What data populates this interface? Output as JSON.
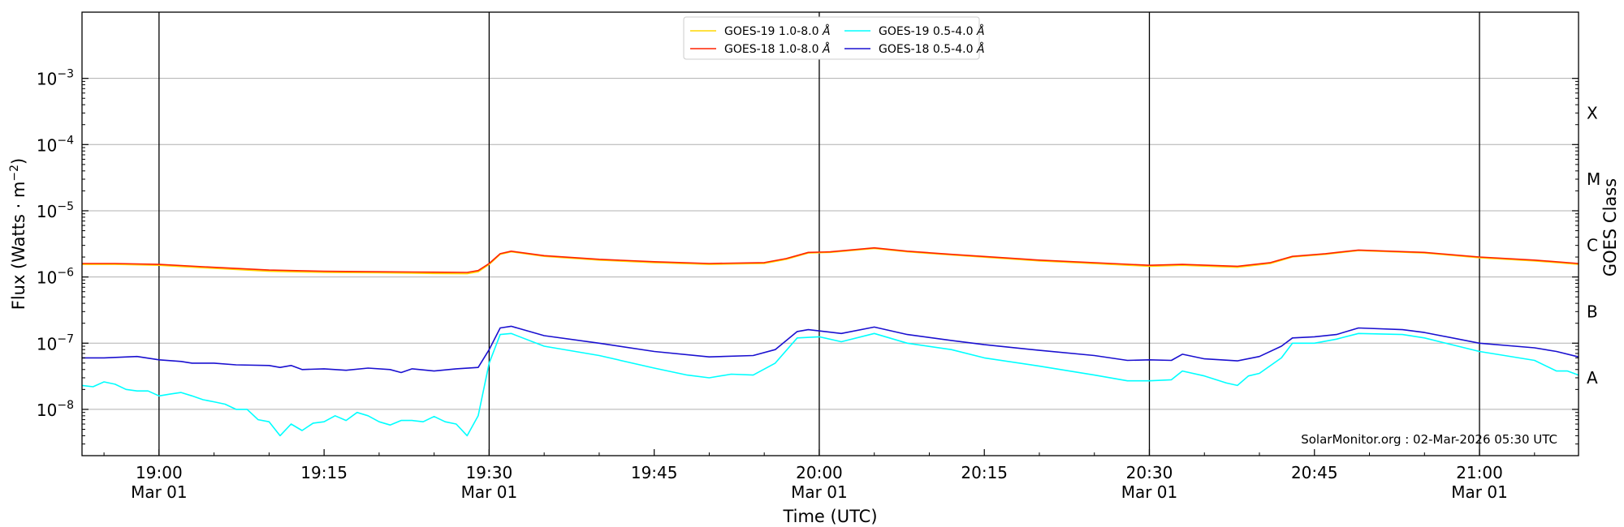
{
  "chart_data": {
    "type": "line",
    "xlabel": "Time (UTC)",
    "ylabel_prefix": "Flux (Watts · m",
    "ylabel_exp": "−2",
    "ylabel_suffix": ")",
    "right_label": "GOES Class",
    "credit": "SolarMonitor.org : 02-Mar-2026 05:30 UTC",
    "yscale": "log",
    "xlim": [
      "18:53",
      "21:09"
    ],
    "ylim": [
      2e-09,
      0.01
    ],
    "x_ticks": [
      {
        "time": "19:00",
        "label": "19:00",
        "sublabel": "Mar 01",
        "vline": true
      },
      {
        "time": "19:15",
        "label": "19:15",
        "sublabel": "",
        "vline": false
      },
      {
        "time": "19:30",
        "label": "19:30",
        "sublabel": "Mar 01",
        "vline": true
      },
      {
        "time": "19:45",
        "label": "19:45",
        "sublabel": "",
        "vline": false
      },
      {
        "time": "20:00",
        "label": "20:00",
        "sublabel": "Mar 01",
        "vline": true
      },
      {
        "time": "20:15",
        "label": "20:15",
        "sublabel": "",
        "vline": false
      },
      {
        "time": "20:30",
        "label": "20:30",
        "sublabel": "Mar 01",
        "vline": true
      },
      {
        "time": "20:45",
        "label": "20:45",
        "sublabel": "",
        "vline": false
      },
      {
        "time": "21:00",
        "label": "21:00",
        "sublabel": "Mar 01",
        "vline": true
      }
    ],
    "y_ticks": [
      {
        "value": 1e-08,
        "base": "10",
        "exp": "−8"
      },
      {
        "value": 1e-07,
        "base": "10",
        "exp": "−7"
      },
      {
        "value": 1e-06,
        "base": "10",
        "exp": "−6"
      },
      {
        "value": 1e-05,
        "base": "10",
        "exp": "−5"
      },
      {
        "value": 0.0001,
        "base": "10",
        "exp": "−4"
      },
      {
        "value": 0.001,
        "base": "10",
        "exp": "−3"
      }
    ],
    "goes_classes": [
      {
        "label": "A",
        "value": 3e-08
      },
      {
        "label": "B",
        "value": 3e-07
      },
      {
        "label": "C",
        "value": 3e-06
      },
      {
        "label": "M",
        "value": 3e-05
      },
      {
        "label": "X",
        "value": 0.0003
      }
    ],
    "grid": "horizontal",
    "legend_position": "top-center",
    "legend": [
      {
        "name": "GOES-19 1.0-8.0",
        "unit": "Å",
        "color": "#ffd700"
      },
      {
        "name": "GOES-18 1.0-8.0",
        "unit": "Å",
        "color": "#ff2200"
      },
      {
        "name": "GOES-19 0.5-4.0",
        "unit": "Å",
        "color": "#00ffff"
      },
      {
        "name": "GOES-18 0.5-4.0",
        "unit": "Å",
        "color": "#1a10d0"
      }
    ],
    "series": [
      {
        "name": "GOES-19 1.0-8.0Å",
        "color": "#ffd700",
        "points": [
          [
            "18:53",
            1.55e-06
          ],
          [
            "18:56",
            1.55e-06
          ],
          [
            "19:00",
            1.5e-06
          ],
          [
            "19:05",
            1.35e-06
          ],
          [
            "19:10",
            1.22e-06
          ],
          [
            "19:15",
            1.17e-06
          ],
          [
            "19:20",
            1.16e-06
          ],
          [
            "19:25",
            1.13e-06
          ],
          [
            "19:28",
            1.12e-06
          ],
          [
            "19:29",
            1.2e-06
          ],
          [
            "19:30",
            1.55e-06
          ],
          [
            "19:31",
            2.2e-06
          ],
          [
            "19:32",
            2.4e-06
          ],
          [
            "19:35",
            2.05e-06
          ],
          [
            "19:40",
            1.8e-06
          ],
          [
            "19:45",
            1.65e-06
          ],
          [
            "19:50",
            1.55e-06
          ],
          [
            "19:55",
            1.6e-06
          ],
          [
            "19:57",
            1.85e-06
          ],
          [
            "19:59",
            2.3e-06
          ],
          [
            "20:01",
            2.35e-06
          ],
          [
            "20:05",
            2.7e-06
          ],
          [
            "20:08",
            2.4e-06
          ],
          [
            "20:12",
            2.15e-06
          ],
          [
            "20:20",
            1.75e-06
          ],
          [
            "20:30",
            1.45e-06
          ],
          [
            "20:33",
            1.5e-06
          ],
          [
            "20:38",
            1.4e-06
          ],
          [
            "20:41",
            1.6e-06
          ],
          [
            "20:43",
            2e-06
          ],
          [
            "20:46",
            2.2e-06
          ],
          [
            "20:49",
            2.5e-06
          ],
          [
            "20:55",
            2.3e-06
          ],
          [
            "21:00",
            1.95e-06
          ],
          [
            "21:05",
            1.75e-06
          ],
          [
            "21:09",
            1.55e-06
          ]
        ]
      },
      {
        "name": "GOES-18 1.0-8.0Å",
        "color": "#ff2200",
        "points": [
          [
            "18:53",
            1.6e-06
          ],
          [
            "18:56",
            1.6e-06
          ],
          [
            "19:00",
            1.55e-06
          ],
          [
            "19:05",
            1.4e-06
          ],
          [
            "19:10",
            1.27e-06
          ],
          [
            "19:15",
            1.22e-06
          ],
          [
            "19:20",
            1.2e-06
          ],
          [
            "19:25",
            1.18e-06
          ],
          [
            "19:28",
            1.17e-06
          ],
          [
            "19:29",
            1.25e-06
          ],
          [
            "19:30",
            1.6e-06
          ],
          [
            "19:31",
            2.25e-06
          ],
          [
            "19:32",
            2.45e-06
          ],
          [
            "19:35",
            2.1e-06
          ],
          [
            "19:40",
            1.85e-06
          ],
          [
            "19:45",
            1.7e-06
          ],
          [
            "19:50",
            1.6e-06
          ],
          [
            "19:55",
            1.65e-06
          ],
          [
            "19:57",
            1.9e-06
          ],
          [
            "19:59",
            2.35e-06
          ],
          [
            "20:01",
            2.4e-06
          ],
          [
            "20:05",
            2.75e-06
          ],
          [
            "20:08",
            2.45e-06
          ],
          [
            "20:12",
            2.2e-06
          ],
          [
            "20:20",
            1.8e-06
          ],
          [
            "20:30",
            1.5e-06
          ],
          [
            "20:33",
            1.55e-06
          ],
          [
            "20:38",
            1.45e-06
          ],
          [
            "20:41",
            1.65e-06
          ],
          [
            "20:43",
            2.05e-06
          ],
          [
            "20:46",
            2.25e-06
          ],
          [
            "20:49",
            2.55e-06
          ],
          [
            "20:55",
            2.35e-06
          ],
          [
            "21:00",
            2e-06
          ],
          [
            "21:05",
            1.8e-06
          ],
          [
            "21:09",
            1.6e-06
          ]
        ]
      },
      {
        "name": "GOES-19 0.5-4.0Å",
        "color": "#00ffff",
        "points": [
          [
            "18:53",
            2.3e-08
          ],
          [
            "18:54",
            2.2e-08
          ],
          [
            "18:55",
            2.6e-08
          ],
          [
            "18:56",
            2.4e-08
          ],
          [
            "18:57",
            2e-08
          ],
          [
            "18:58",
            1.9e-08
          ],
          [
            "18:59",
            1.9e-08
          ],
          [
            "19:00",
            1.6e-08
          ],
          [
            "19:01",
            1.7e-08
          ],
          [
            "19:02",
            1.8e-08
          ],
          [
            "19:03",
            1.6e-08
          ],
          [
            "19:04",
            1.4e-08
          ],
          [
            "19:05",
            1.3e-08
          ],
          [
            "19:06",
            1.2e-08
          ],
          [
            "19:07",
            1e-08
          ],
          [
            "19:08",
            1e-08
          ],
          [
            "19:09",
            7e-09
          ],
          [
            "19:10",
            6.5e-09
          ],
          [
            "19:11",
            4e-09
          ],
          [
            "19:12",
            6e-09
          ],
          [
            "19:13",
            4.8e-09
          ],
          [
            "19:14",
            6.2e-09
          ],
          [
            "19:15",
            6.5e-09
          ],
          [
            "19:16",
            8e-09
          ],
          [
            "19:17",
            6.8e-09
          ],
          [
            "19:18",
            9e-09
          ],
          [
            "19:19",
            8e-09
          ],
          [
            "19:20",
            6.5e-09
          ],
          [
            "19:21",
            5.8e-09
          ],
          [
            "19:22",
            6.8e-09
          ],
          [
            "19:23",
            6.8e-09
          ],
          [
            "19:24",
            6.5e-09
          ],
          [
            "19:25",
            7.8e-09
          ],
          [
            "19:26",
            6.5e-09
          ],
          [
            "19:27",
            6e-09
          ],
          [
            "19:28",
            4e-09
          ],
          [
            "19:29",
            8e-09
          ],
          [
            "19:30",
            5e-08
          ],
          [
            "19:31",
            1.35e-07
          ],
          [
            "19:32",
            1.4e-07
          ],
          [
            "19:35",
            9e-08
          ],
          [
            "19:40",
            6.5e-08
          ],
          [
            "19:45",
            4.2e-08
          ],
          [
            "19:48",
            3.3e-08
          ],
          [
            "19:50",
            3e-08
          ],
          [
            "19:52",
            3.4e-08
          ],
          [
            "19:54",
            3.3e-08
          ],
          [
            "19:56",
            5e-08
          ],
          [
            "19:58",
            1.2e-07
          ],
          [
            "20:00",
            1.25e-07
          ],
          [
            "20:02",
            1.05e-07
          ],
          [
            "20:05",
            1.4e-07
          ],
          [
            "20:08",
            1e-07
          ],
          [
            "20:12",
            8e-08
          ],
          [
            "20:15",
            6e-08
          ],
          [
            "20:20",
            4.5e-08
          ],
          [
            "20:25",
            3.3e-08
          ],
          [
            "20:28",
            2.7e-08
          ],
          [
            "20:30",
            2.7e-08
          ],
          [
            "20:32",
            2.8e-08
          ],
          [
            "20:33",
            3.8e-08
          ],
          [
            "20:35",
            3.2e-08
          ],
          [
            "20:37",
            2.5e-08
          ],
          [
            "20:38",
            2.3e-08
          ],
          [
            "20:39",
            3.2e-08
          ],
          [
            "20:40",
            3.5e-08
          ],
          [
            "20:42",
            6e-08
          ],
          [
            "20:43",
            1e-07
          ],
          [
            "20:45",
            1e-07
          ],
          [
            "20:47",
            1.15e-07
          ],
          [
            "20:49",
            1.4e-07
          ],
          [
            "20:53",
            1.35e-07
          ],
          [
            "20:55",
            1.2e-07
          ],
          [
            "21:00",
            7.5e-08
          ],
          [
            "21:05",
            5.5e-08
          ],
          [
            "21:07",
            3.8e-08
          ],
          [
            "21:08",
            3.8e-08
          ],
          [
            "21:09",
            3.3e-08
          ]
        ]
      },
      {
        "name": "GOES-18 0.5-4.0Å",
        "color": "#1a10d0",
        "points": [
          [
            "18:53",
            6e-08
          ],
          [
            "18:55",
            6e-08
          ],
          [
            "18:58",
            6.3e-08
          ],
          [
            "19:00",
            5.6e-08
          ],
          [
            "19:02",
            5.3e-08
          ],
          [
            "19:03",
            5e-08
          ],
          [
            "19:05",
            5e-08
          ],
          [
            "19:07",
            4.7e-08
          ],
          [
            "19:10",
            4.6e-08
          ],
          [
            "19:11",
            4.3e-08
          ],
          [
            "19:12",
            4.6e-08
          ],
          [
            "19:13",
            4e-08
          ],
          [
            "19:15",
            4.1e-08
          ],
          [
            "19:17",
            3.9e-08
          ],
          [
            "19:19",
            4.2e-08
          ],
          [
            "19:21",
            4e-08
          ],
          [
            "19:22",
            3.6e-08
          ],
          [
            "19:23",
            4.1e-08
          ],
          [
            "19:25",
            3.8e-08
          ],
          [
            "19:27",
            4.1e-08
          ],
          [
            "19:29",
            4.3e-08
          ],
          [
            "19:30",
            8e-08
          ],
          [
            "19:31",
            1.7e-07
          ],
          [
            "19:32",
            1.8e-07
          ],
          [
            "19:35",
            1.3e-07
          ],
          [
            "19:40",
            1e-07
          ],
          [
            "19:45",
            7.5e-08
          ],
          [
            "19:50",
            6.2e-08
          ],
          [
            "19:54",
            6.5e-08
          ],
          [
            "19:56",
            8e-08
          ],
          [
            "19:58",
            1.5e-07
          ],
          [
            "19:59",
            1.6e-07
          ],
          [
            "20:02",
            1.4e-07
          ],
          [
            "20:05",
            1.75e-07
          ],
          [
            "20:08",
            1.35e-07
          ],
          [
            "20:12",
            1.1e-07
          ],
          [
            "20:15",
            9.5e-08
          ],
          [
            "20:20",
            7.8e-08
          ],
          [
            "20:25",
            6.5e-08
          ],
          [
            "20:28",
            5.5e-08
          ],
          [
            "20:30",
            5.6e-08
          ],
          [
            "20:32",
            5.5e-08
          ],
          [
            "20:33",
            6.8e-08
          ],
          [
            "20:35",
            5.8e-08
          ],
          [
            "20:38",
            5.4e-08
          ],
          [
            "20:40",
            6.3e-08
          ],
          [
            "20:42",
            9e-08
          ],
          [
            "20:43",
            1.2e-07
          ],
          [
            "20:45",
            1.25e-07
          ],
          [
            "20:47",
            1.35e-07
          ],
          [
            "20:49",
            1.7e-07
          ],
          [
            "20:53",
            1.6e-07
          ],
          [
            "20:55",
            1.45e-07
          ],
          [
            "21:00",
            1e-07
          ],
          [
            "21:05",
            8.5e-08
          ],
          [
            "21:07",
            7.5e-08
          ],
          [
            "21:09",
            6.2e-08
          ]
        ]
      }
    ]
  }
}
